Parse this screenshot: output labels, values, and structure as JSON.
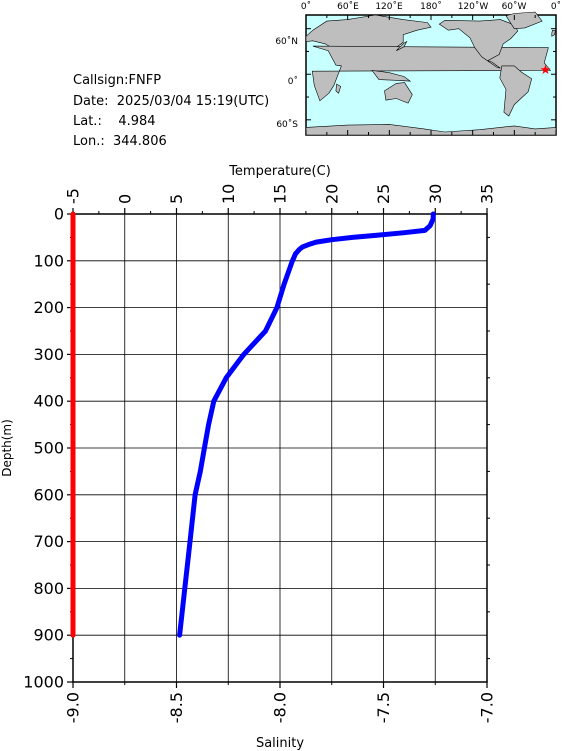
{
  "info": {
    "callsign": "Callsign:FNFP",
    "date": "Date:  2025/03/04 15:19(UTC)",
    "lat": "Lat.:    4.984",
    "lon": "Lon.:  344.806"
  },
  "map": {
    "lon_labels": [
      "0˚",
      "60˚E",
      "120˚E",
      "180˚",
      "120˚W",
      "60˚W",
      "0˚"
    ],
    "lat_labels": [
      "60˚N",
      "0˚",
      "60˚S"
    ],
    "ocean_color": "#c8ffff",
    "land_color": "#bebebe",
    "marker_color": "#ff0000",
    "station_lon_e": 344.806,
    "station_lat": 4.984
  },
  "chart_data": {
    "type": "line",
    "ylabel": "Depth(m)",
    "ylim": [
      1000,
      0
    ],
    "yticks": [
      0,
      100,
      200,
      300,
      400,
      500,
      600,
      700,
      800,
      900,
      1000
    ],
    "top_axis": {
      "label": "Temperature(C)",
      "lim": [
        -5,
        35
      ],
      "ticks": [
        -5,
        0,
        5,
        10,
        15,
        20,
        25,
        30,
        35
      ],
      "tick_labels": [
        "-5",
        "0",
        "5",
        "10",
        "15",
        "20",
        "25",
        "30",
        "35"
      ]
    },
    "bottom_axis": {
      "label": "Salinity",
      "lim": [
        -9.0,
        -7.0
      ],
      "ticks": [
        -9.0,
        -8.5,
        -8.0,
        -7.5,
        -7.0
      ],
      "tick_labels": [
        "-9.0",
        "-8.5",
        "-8.0",
        "-7.5",
        "-7.0"
      ]
    },
    "grid": true,
    "series": [
      {
        "axis": "temperature",
        "color": "#0000ff",
        "depth": [
          0,
          10,
          25,
          35,
          40,
          45,
          50,
          55,
          60,
          65,
          70,
          75,
          80,
          85,
          90,
          95,
          100,
          150,
          200,
          250,
          300,
          350,
          400,
          450,
          500,
          550,
          600,
          700,
          800,
          900
        ],
        "values": [
          29.8,
          29.8,
          29.5,
          29.0,
          27.0,
          24.5,
          22.0,
          20.0,
          18.5,
          17.8,
          17.2,
          16.9,
          16.7,
          16.5,
          16.4,
          16.3,
          16.2,
          15.4,
          14.7,
          13.6,
          11.5,
          9.8,
          8.6,
          8.1,
          7.7,
          7.3,
          6.8,
          6.3,
          5.8,
          5.3
        ]
      },
      {
        "axis": "salinity",
        "color": "#ff0000",
        "depth": [
          0,
          900
        ],
        "values": [
          -9.0,
          -9.0
        ]
      }
    ]
  }
}
